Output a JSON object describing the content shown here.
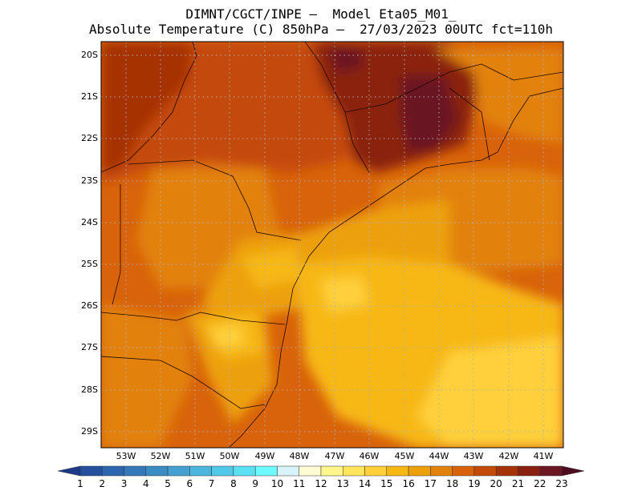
{
  "title": {
    "line1": "DIMNT/CGCT/INPE —  Model Eta05_M01_",
    "line2": "Absolute Temperature (C) 850hPa —  27/03/2023 00UTC fct=110h"
  },
  "map": {
    "lat_labels": [
      "20S",
      "21S",
      "22S",
      "23S",
      "24S",
      "25S",
      "26S",
      "27S",
      "28S",
      "29S"
    ],
    "lon_labels": [
      "53W",
      "52W",
      "51W",
      "50W",
      "49W",
      "48W",
      "47W",
      "46W",
      "45W",
      "44W",
      "43W",
      "42W",
      "41W"
    ],
    "grid": "dotted"
  },
  "colorbar": {
    "labels": [
      "1",
      "2",
      "3",
      "4",
      "5",
      "6",
      "7",
      "8",
      "9",
      "10",
      "11",
      "12",
      "13",
      "14",
      "15",
      "16",
      "17",
      "18",
      "19",
      "20",
      "21",
      "22",
      "23"
    ],
    "colors": [
      "#1b3a8a",
      "#24509e",
      "#2d66b0",
      "#3479ba",
      "#3a8cc4",
      "#44a0d0",
      "#4cb6de",
      "#52c9e8",
      "#5ce0f4",
      "#6ef8ff",
      "#d9f3fb",
      "#fffbd4",
      "#fff58a",
      "#ffe55c",
      "#ffd03a",
      "#f7b814",
      "#eda00e",
      "#e2820c",
      "#d8630a",
      "#c44a08",
      "#a63306",
      "#8a2010",
      "#6b1620",
      "#4e0c20"
    ]
  }
}
